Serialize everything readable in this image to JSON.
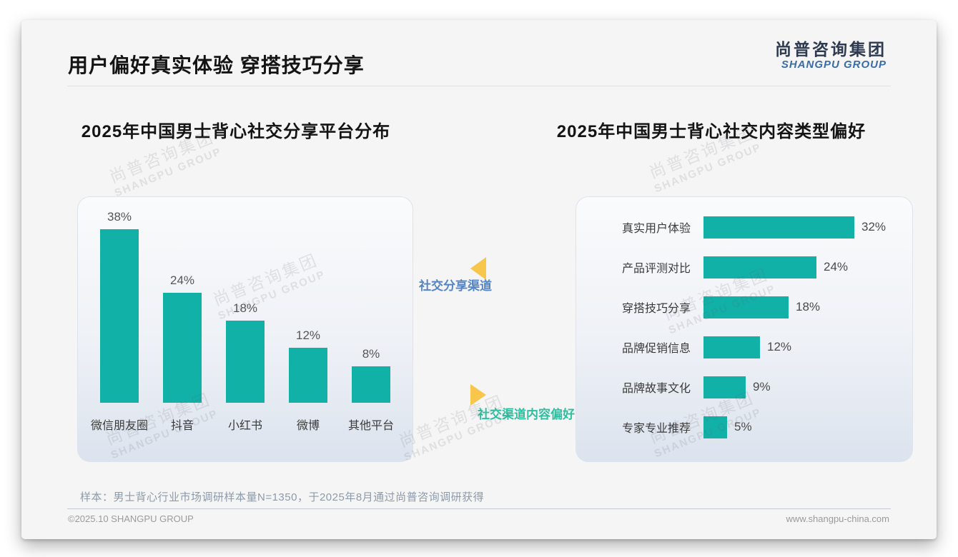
{
  "page": {
    "title": "用户偏好真实体验 穿搭技巧分享",
    "logo": {
      "cn": "尚普咨询集团",
      "en": "SHANGPU GROUP"
    },
    "watermark": {
      "cn": "尚普咨询集团",
      "en": "SHANGPU GROUP"
    },
    "footnote": "样本：男士背心行业市场调研样本量N=1350，于2025年8月通过尚普咨询调研获得",
    "copyright": "©2025.10 SHANGPU GROUP",
    "website": "www.shangpu-china.com"
  },
  "annotations": {
    "share_channel": {
      "label": "社交分享渠道",
      "color": "#5585c2"
    },
    "content_preference": {
      "label": "社交渠道内容偏好",
      "color": "#2ebfa0"
    },
    "arrow_color": "#f7c64a"
  },
  "colors": {
    "bar_teal": "#12b1a7",
    "accent_yellow": "#f7c64a"
  },
  "chart_data": [
    {
      "type": "bar",
      "orientation": "vertical",
      "title": "2025年中国男士背心社交分享平台分布",
      "categories": [
        "微信朋友圈",
        "抖音",
        "小红书",
        "微博",
        "其他平台"
      ],
      "values": [
        38,
        24,
        18,
        12,
        8
      ],
      "labels": [
        "38%",
        "24%",
        "18%",
        "12%",
        "8%"
      ],
      "unit": "%",
      "ylim": [
        0,
        40
      ],
      "grid": false,
      "legend": "none"
    },
    {
      "type": "bar",
      "orientation": "horizontal",
      "title": "2025年中国男士背心社交内容类型偏好",
      "categories": [
        "真实用户体验",
        "产品评测对比",
        "穿搭技巧分享",
        "品牌促销信息",
        "品牌故事文化",
        "专家专业推荐"
      ],
      "values": [
        32,
        24,
        18,
        12,
        9,
        5
      ],
      "labels": [
        "32%",
        "24%",
        "18%",
        "12%",
        "9%",
        "5%"
      ],
      "unit": "%",
      "xlim": [
        0,
        35
      ],
      "grid": false,
      "legend": "none"
    }
  ]
}
